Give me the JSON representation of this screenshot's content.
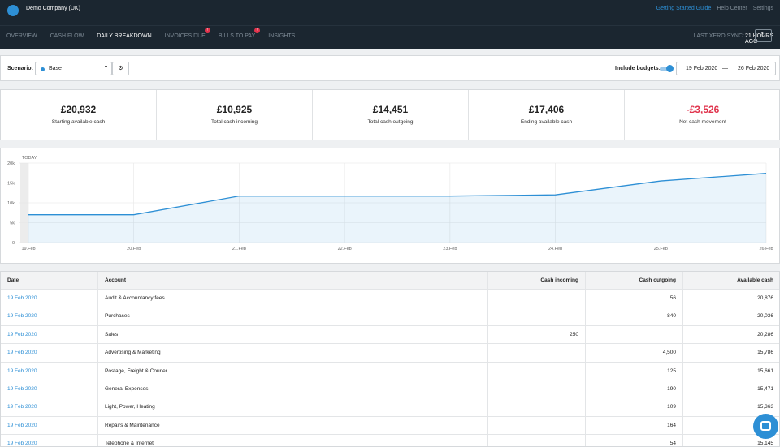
{
  "header": {
    "company": "Demo Company (UK)",
    "links": [
      "Getting Started Guide",
      "Help Center",
      "Settings"
    ]
  },
  "nav": {
    "items": [
      {
        "label": "OVERVIEW"
      },
      {
        "label": "CASH FLOW"
      },
      {
        "label": "DAILY BREAKDOWN"
      },
      {
        "label": "INVOICES DUE",
        "badge": "!"
      },
      {
        "label": "BILLS TO PAY",
        "badge": "!"
      },
      {
        "label": "INSIGHTS"
      }
    ],
    "active": 2,
    "sync_label": "LAST XERO SYNC:",
    "sync_value": "21 HOURS AGO"
  },
  "toolbar": {
    "scenario_label": "Scenario:",
    "scenario": "Base",
    "budgets_label": "Include budgets:",
    "date_from": "19 Feb 2020",
    "date_sep": "—",
    "date_to": "26 Feb 2020"
  },
  "stats": [
    {
      "value": "£20,932",
      "label": "Starting available cash"
    },
    {
      "value": "£10,925",
      "label": "Total cash incoming"
    },
    {
      "value": "£14,451",
      "label": "Total cash outgoing"
    },
    {
      "value": "£17,406",
      "label": "Ending available cash"
    },
    {
      "value": "-£3,526",
      "label": "Net cash movement",
      "negative": true
    }
  ],
  "chart_data": {
    "type": "area",
    "today_label": "TODAY",
    "categories": [
      "19.Feb",
      "20.Feb",
      "21.Feb",
      "22.Feb",
      "23.Feb",
      "24.Feb",
      "25.Feb",
      "26.Feb"
    ],
    "values": [
      7000,
      7000,
      11700,
      11700,
      11700,
      12000,
      15500,
      17406
    ],
    "color": "#2d8fd5",
    "ylim": [
      0,
      20000
    ],
    "yticks": [
      0,
      {
        "value": 5000,
        "label": "5k"
      },
      {
        "value": 10000,
        "label": "10k"
      },
      {
        "value": 15000,
        "label": "15k"
      },
      {
        "value": 20000,
        "label": "20k"
      }
    ],
    "grid": true
  },
  "table": {
    "columns": [
      "Date",
      "Account",
      "Cash incoming",
      "Cash outgoing",
      "Available cash"
    ],
    "rows": [
      [
        "19 Feb 2020",
        "Audit & Accountancy fees",
        null,
        "56",
        "20,876"
      ],
      [
        "19 Feb 2020",
        "Purchases",
        null,
        "840",
        "20,036"
      ],
      [
        "19 Feb 2020",
        "Sales",
        "250",
        null,
        "20,286"
      ],
      [
        "19 Feb 2020",
        "Advertising & Marketing",
        null,
        "4,500",
        "15,786"
      ],
      [
        "19 Feb 2020",
        "Postage, Freight & Courier",
        null,
        "125",
        "15,661"
      ],
      [
        "19 Feb 2020",
        "General Expenses",
        null,
        "190",
        "15,471"
      ],
      [
        "19 Feb 2020",
        "Light, Power, Heating",
        null,
        "109",
        "15,363"
      ],
      [
        "19 Feb 2020",
        "Repairs & Maintenance",
        null,
        "164",
        "15,199"
      ],
      [
        "19 Feb 2020",
        "Telephone & Internet",
        null,
        "54",
        "15,145"
      ]
    ]
  }
}
